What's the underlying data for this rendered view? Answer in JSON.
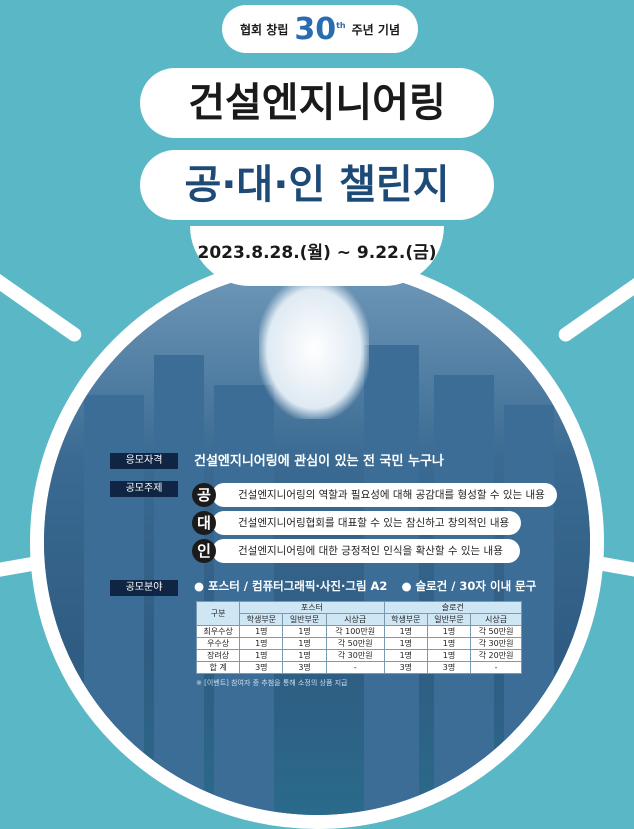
{
  "header": {
    "left": "협회 창립",
    "logo_number": "30",
    "logo_suffix": "th",
    "right": "주년 기념"
  },
  "title": {
    "line1": "건설엔지니어링",
    "line2": "공·대·인 챌린지"
  },
  "date": "2023.8.28.(월) ~ 9.22.(금)",
  "eligibility": {
    "label": "응모자격",
    "text": "건설엔지니어링에 관심이 있는 전 국민 누구나"
  },
  "theme": {
    "label": "공모주제",
    "items": [
      {
        "char": "공",
        "text": "건설엔지니어링의 역할과 필요성에 대해 공감대를 형성할 수 있는 내용"
      },
      {
        "char": "대",
        "text": "건설엔지니어링협회를 대표할 수 있는 참신하고 창의적인 내용"
      },
      {
        "char": "인",
        "text": "건설엔지니어링에 대한 긍정적인 인식을 확산할 수 있는 내용"
      }
    ]
  },
  "field": {
    "label": "공모분야",
    "poster": "● 포스터 / 컴퓨터그래픽·사진·그림 A2",
    "slogan": "● 슬로건 / 30자 이내 문구"
  },
  "table": {
    "corner": "구분",
    "groups": [
      "포스터",
      "슬로건"
    ],
    "sub": [
      "학생부문",
      "일반부문",
      "시상금",
      "학생부문",
      "일반부문",
      "시상금"
    ],
    "rows": [
      [
        "최우수상",
        "1명",
        "1명",
        "각 100만원",
        "1명",
        "1명",
        "각 50만원"
      ],
      [
        "우수상",
        "1명",
        "1명",
        "각 50만원",
        "1명",
        "1명",
        "각 30만원"
      ],
      [
        "장려상",
        "1명",
        "1명",
        "각 30만원",
        "1명",
        "1명",
        "각 20만원"
      ],
      [
        "합 계",
        "3명",
        "3명",
        "-",
        "3명",
        "3명",
        "-"
      ]
    ]
  },
  "note": "※ [이벤트] 참여자 중 추첨을 통해 소정의 상품 지급",
  "colors": {
    "background": "#5ab8c6",
    "navy": "#2e5f86",
    "label": "#0f2543"
  }
}
